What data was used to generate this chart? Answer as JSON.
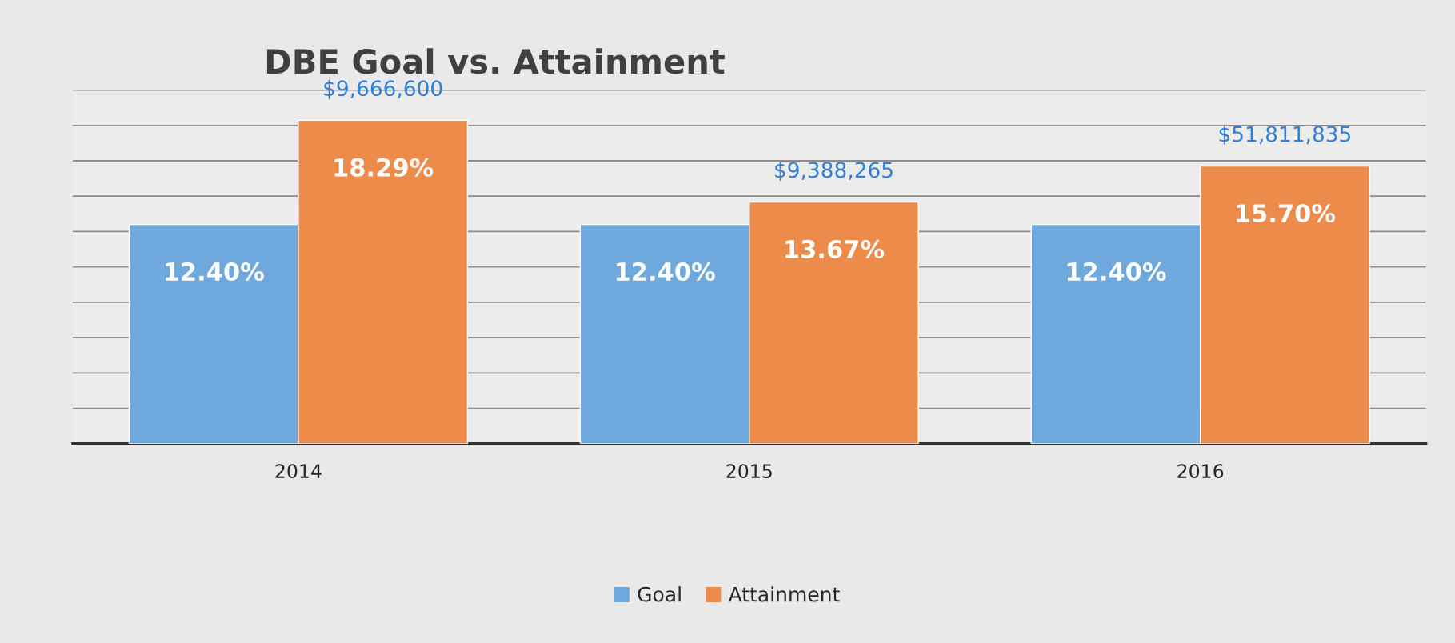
{
  "chart_data": {
    "type": "bar",
    "title": "DBE Goal vs. Attainment",
    "categories": [
      "2014",
      "2015",
      "2016"
    ],
    "series": [
      {
        "name": "Goal",
        "color": "#6fa8dc",
        "values": [
          12.4,
          12.4,
          12.4
        ],
        "value_labels": [
          "12.40%",
          "12.40%",
          "12.40%"
        ]
      },
      {
        "name": "Attainment",
        "color": "#ed8b4a",
        "values": [
          18.29,
          13.67,
          15.7
        ],
        "value_labels": [
          "18.29%",
          "13.67%",
          "15.70%"
        ]
      }
    ],
    "ylim": [
      0,
      20
    ],
    "yticks": [
      {
        "value": 0,
        "label": null
      },
      {
        "value": 2,
        "label": null
      },
      {
        "value": 4,
        "label": null
      },
      {
        "value": 6,
        "label": null
      },
      {
        "value": 8,
        "label": null
      },
      {
        "value": 10,
        "label": null
      },
      {
        "value": 12,
        "label": null
      },
      {
        "value": 14,
        "label": null
      },
      {
        "value": 16,
        "label": null
      },
      {
        "value": 18,
        "label": null
      },
      {
        "value": 20,
        "label": null
      }
    ],
    "annotations": [
      {
        "text": "$9,666,600",
        "x": "2014",
        "y": 18.29
      },
      {
        "text": "$9,388,265",
        "x": "2015",
        "y": 13.67
      },
      {
        "text": "$51,811,835",
        "x": "2016",
        "y": 15.7
      }
    ],
    "grid": "y",
    "legend": "bottom",
    "tick_labels": "x"
  }
}
